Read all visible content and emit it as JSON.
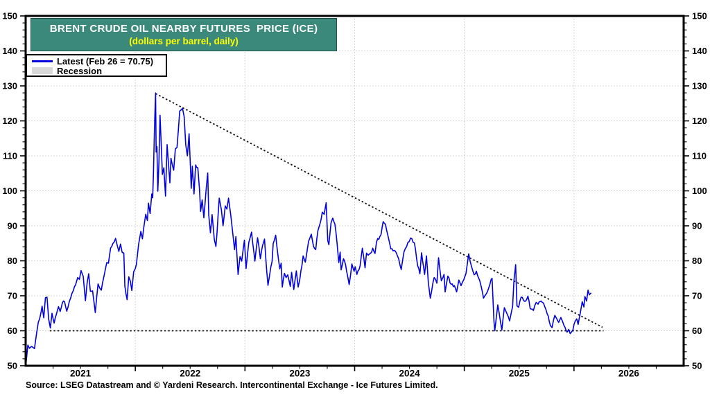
{
  "header": {
    "title": "BRENT CRUDE OIL NEARBY FUTURES  PRICE (ICE)",
    "subtitle": "(dollars per barrel, daily)",
    "title_bg": "#3a897b",
    "title_color": "#ffffff",
    "subtitle_color": "#ffff00"
  },
  "legend": {
    "items": [
      {
        "label": "Latest (Feb 26 = 70.75)",
        "type": "line",
        "color": "#0101dc"
      },
      {
        "label": "Recession",
        "type": "box",
        "color": "#d9d9d9"
      }
    ]
  },
  "source": "Source: LSEG Datastream and © Yardeni Research. Intercontinental Exchange - Ice Futures Limited.",
  "chart_data": {
    "type": "line",
    "title": "BRENT CRUDE OIL NEARBY FUTURES PRICE (ICE)",
    "subtitle": "(dollars per barrel, daily)",
    "xlabel": "",
    "ylabel": "dollars per barrel",
    "grid": true,
    "legend_position": "top-left",
    "latest": {
      "date": "Feb 26",
      "value": 70.75
    },
    "y_axis": {
      "min": 50,
      "max": 150,
      "major_step": 10,
      "minor_step": 2,
      "ticks": [
        50,
        60,
        70,
        80,
        90,
        100,
        110,
        120,
        130,
        140,
        150
      ],
      "sides": "both"
    },
    "x_axis": {
      "start_year": 2021,
      "span_years": 6,
      "minor_step_years": 0.25,
      "labels": [
        "2021",
        "2022",
        "2023",
        "2024",
        "2025",
        "2026"
      ]
    },
    "trendlines": [
      {
        "name": "descending-resistance",
        "style": "dotted",
        "color": "#111111",
        "points": [
          [
            1.185,
            127.8
          ],
          [
            5.26,
            61.0
          ]
        ]
      },
      {
        "name": "horizontal-support-60",
        "style": "dotted",
        "color": "#111111",
        "points": [
          [
            0.22,
            60.0
          ],
          [
            5.27,
            60.0
          ]
        ]
      }
    ],
    "series": [
      {
        "name": "Brent crude oil nearby futures price",
        "color": "#0101dc",
        "x_unit": "years since 2021-01-01",
        "points": [
          [
            0.005,
            51.2
          ],
          [
            0.02,
            55.9
          ],
          [
            0.035,
            55.0
          ],
          [
            0.055,
            55.5
          ],
          [
            0.08,
            54.9
          ],
          [
            0.1,
            59.3
          ],
          [
            0.115,
            62.4
          ],
          [
            0.14,
            65.2
          ],
          [
            0.15,
            67.0
          ],
          [
            0.165,
            63.7
          ],
          [
            0.18,
            69.4
          ],
          [
            0.195,
            69.6
          ],
          [
            0.21,
            63.3
          ],
          [
            0.225,
            60.8
          ],
          [
            0.24,
            65.0
          ],
          [
            0.26,
            62.2
          ],
          [
            0.28,
            64.7
          ],
          [
            0.3,
            66.9
          ],
          [
            0.315,
            65.5
          ],
          [
            0.335,
            68.0
          ],
          [
            0.355,
            68.3
          ],
          [
            0.375,
            65.6
          ],
          [
            0.41,
            69.3
          ],
          [
            0.435,
            71.5
          ],
          [
            0.455,
            73.1
          ],
          [
            0.475,
            75.2
          ],
          [
            0.49,
            74.7
          ],
          [
            0.505,
            77.2
          ],
          [
            0.525,
            75.6
          ],
          [
            0.545,
            68.6
          ],
          [
            0.56,
            73.6
          ],
          [
            0.575,
            76.3
          ],
          [
            0.59,
            71.3
          ],
          [
            0.61,
            71.4
          ],
          [
            0.635,
            65.2
          ],
          [
            0.66,
            73.4
          ],
          [
            0.675,
            72.2
          ],
          [
            0.69,
            71.6
          ],
          [
            0.715,
            75.7
          ],
          [
            0.74,
            79.5
          ],
          [
            0.755,
            79.3
          ],
          [
            0.775,
            83.7
          ],
          [
            0.795,
            84.9
          ],
          [
            0.82,
            86.4
          ],
          [
            0.835,
            84.4
          ],
          [
            0.85,
            82.7
          ],
          [
            0.865,
            84.8
          ],
          [
            0.88,
            82.4
          ],
          [
            0.895,
            82.2
          ],
          [
            0.905,
            72.7
          ],
          [
            0.915,
            70.6
          ],
          [
            0.925,
            68.9
          ],
          [
            0.94,
            75.4
          ],
          [
            0.955,
            74.2
          ],
          [
            0.968,
            71.5
          ],
          [
            0.985,
            76.9
          ],
          [
            1.0,
            77.8
          ],
          [
            1.01,
            79.0
          ],
          [
            1.03,
            84.7
          ],
          [
            1.05,
            88.4
          ],
          [
            1.065,
            86.3
          ],
          [
            1.085,
            91.2
          ],
          [
            1.095,
            93.3
          ],
          [
            1.11,
            91.5
          ],
          [
            1.12,
            96.5
          ],
          [
            1.135,
            93.5
          ],
          [
            1.15,
            99.1
          ],
          [
            1.158,
            98.0
          ],
          [
            1.165,
            105.0
          ],
          [
            1.175,
            118.1
          ],
          [
            1.185,
            127.98
          ],
          [
            1.19,
            111.1
          ],
          [
            1.197,
            112.7
          ],
          [
            1.205,
            99.9
          ],
          [
            1.215,
            107.9
          ],
          [
            1.225,
            121.6
          ],
          [
            1.237,
            112.5
          ],
          [
            1.247,
            104.7
          ],
          [
            1.26,
            106.6
          ],
          [
            1.275,
            98.5
          ],
          [
            1.29,
            113.2
          ],
          [
            1.315,
            102.3
          ],
          [
            1.325,
            109.3
          ],
          [
            1.35,
            105.9
          ],
          [
            1.365,
            112.0
          ],
          [
            1.38,
            112.4
          ],
          [
            1.405,
            122.8
          ],
          [
            1.43,
            123.6
          ],
          [
            1.445,
            121.2
          ],
          [
            1.46,
            113.1
          ],
          [
            1.475,
            110.0
          ],
          [
            1.49,
            116.3
          ],
          [
            1.51,
            100.7
          ],
          [
            1.52,
            107.0
          ],
          [
            1.535,
            99.1
          ],
          [
            1.55,
            107.4
          ],
          [
            1.57,
            106.6
          ],
          [
            1.585,
            100.5
          ],
          [
            1.595,
            94.1
          ],
          [
            1.61,
            97.4
          ],
          [
            1.625,
            92.3
          ],
          [
            1.645,
            100.2
          ],
          [
            1.66,
            105.1
          ],
          [
            1.67,
            93.0
          ],
          [
            1.685,
            88.0
          ],
          [
            1.7,
            93.2
          ],
          [
            1.72,
            86.2
          ],
          [
            1.735,
            84.1
          ],
          [
            1.745,
            88.0
          ],
          [
            1.765,
            97.9
          ],
          [
            1.785,
            94.6
          ],
          [
            1.8,
            90.0
          ],
          [
            1.82,
            95.7
          ],
          [
            1.835,
            94.8
          ],
          [
            1.85,
            97.9
          ],
          [
            1.87,
            93.1
          ],
          [
            1.89,
            87.5
          ],
          [
            1.905,
            83.2
          ],
          [
            1.917,
            86.9
          ],
          [
            1.937,
            76.1
          ],
          [
            1.955,
            81.2
          ],
          [
            1.97,
            79.9
          ],
          [
            1.995,
            85.9
          ],
          [
            2.01,
            77.8
          ],
          [
            2.035,
            85.3
          ],
          [
            2.06,
            88.2
          ],
          [
            2.09,
            79.9
          ],
          [
            2.115,
            86.6
          ],
          [
            2.14,
            80.6
          ],
          [
            2.16,
            84.3
          ],
          [
            2.178,
            86.2
          ],
          [
            2.197,
            77.5
          ],
          [
            2.21,
            73.0
          ],
          [
            2.235,
            78.1
          ],
          [
            2.247,
            79.8
          ],
          [
            2.257,
            84.9
          ],
          [
            2.28,
            87.3
          ],
          [
            2.3,
            81.7
          ],
          [
            2.318,
            77.7
          ],
          [
            2.33,
            79.3
          ],
          [
            2.34,
            72.5
          ],
          [
            2.36,
            76.4
          ],
          [
            2.375,
            75.2
          ],
          [
            2.39,
            76.0
          ],
          [
            2.413,
            72.7
          ],
          [
            2.425,
            76.7
          ],
          [
            2.445,
            71.8
          ],
          [
            2.468,
            77.1
          ],
          [
            2.485,
            72.5
          ],
          [
            2.5,
            74.7
          ],
          [
            2.53,
            81.4
          ],
          [
            2.55,
            79.6
          ],
          [
            2.58,
            85.6
          ],
          [
            2.605,
            87.6
          ],
          [
            2.625,
            84.1
          ],
          [
            2.645,
            83.2
          ],
          [
            2.665,
            88.6
          ],
          [
            2.685,
            90.7
          ],
          [
            2.705,
            93.9
          ],
          [
            2.722,
            93.3
          ],
          [
            2.74,
            96.6
          ],
          [
            2.755,
            85.8
          ],
          [
            2.765,
            84.6
          ],
          [
            2.785,
            90.9
          ],
          [
            2.8,
            92.2
          ],
          [
            2.82,
            90.5
          ],
          [
            2.84,
            84.9
          ],
          [
            2.855,
            79.5
          ],
          [
            2.868,
            82.5
          ],
          [
            2.877,
            77.4
          ],
          [
            2.898,
            80.6
          ],
          [
            2.917,
            78.9
          ],
          [
            2.935,
            75.8
          ],
          [
            2.95,
            73.2
          ],
          [
            2.975,
            79.1
          ],
          [
            2.995,
            77.0
          ],
          [
            3.005,
            78.3
          ],
          [
            3.02,
            76.1
          ],
          [
            3.05,
            78.6
          ],
          [
            3.07,
            83.6
          ],
          [
            3.095,
            78.0
          ],
          [
            3.108,
            82.2
          ],
          [
            3.123,
            81.6
          ],
          [
            3.155,
            82.5
          ],
          [
            3.165,
            83.6
          ],
          [
            3.185,
            82.1
          ],
          [
            3.2,
            85.4
          ],
          [
            3.24,
            87.5
          ],
          [
            3.26,
            91.2
          ],
          [
            3.28,
            90.5
          ],
          [
            3.305,
            87.0
          ],
          [
            3.33,
            83.4
          ],
          [
            3.37,
            82.8
          ],
          [
            3.39,
            81.4
          ],
          [
            3.425,
            77.5
          ],
          [
            3.45,
            82.6
          ],
          [
            3.485,
            85.2
          ],
          [
            3.51,
            86.5
          ],
          [
            3.545,
            85.1
          ],
          [
            3.575,
            78.6
          ],
          [
            3.595,
            76.3
          ],
          [
            3.61,
            82.3
          ],
          [
            3.638,
            76.1
          ],
          [
            3.655,
            81.4
          ],
          [
            3.672,
            73.7
          ],
          [
            3.69,
            69.3
          ],
          [
            3.725,
            75.2
          ],
          [
            3.75,
            73.6
          ],
          [
            3.765,
            80.9
          ],
          [
            3.79,
            74.3
          ],
          [
            3.815,
            76.1
          ],
          [
            3.825,
            71.1
          ],
          [
            3.85,
            75.6
          ],
          [
            3.88,
            73.3
          ],
          [
            3.91,
            72.9
          ],
          [
            3.93,
            71.1
          ],
          [
            3.95,
            74.5
          ],
          [
            3.97,
            72.9
          ],
          [
            3.995,
            74.6
          ],
          [
            4.015,
            76.3
          ],
          [
            4.04,
            82.0
          ],
          [
            4.065,
            78.5
          ],
          [
            4.09,
            76.0
          ],
          [
            4.11,
            77.0
          ],
          [
            4.14,
            74.4
          ],
          [
            4.155,
            72.5
          ],
          [
            4.175,
            69.3
          ],
          [
            4.21,
            71.1
          ],
          [
            4.245,
            74.7
          ],
          [
            4.253,
            75.0
          ],
          [
            4.27,
            62.8
          ],
          [
            4.278,
            60.0
          ],
          [
            4.305,
            67.4
          ],
          [
            4.327,
            63.1
          ],
          [
            4.342,
            60.2
          ],
          [
            4.365,
            66.6
          ],
          [
            4.39,
            64.8
          ],
          [
            4.413,
            62.8
          ],
          [
            4.44,
            66.9
          ],
          [
            4.452,
            74.2
          ],
          [
            4.468,
            78.9
          ],
          [
            4.48,
            67.1
          ],
          [
            4.495,
            66.7
          ],
          [
            4.518,
            69.6
          ],
          [
            4.54,
            68.7
          ],
          [
            4.56,
            68.5
          ],
          [
            4.58,
            69.9
          ],
          [
            4.6,
            66.4
          ],
          [
            4.63,
            65.8
          ],
          [
            4.655,
            68.1
          ],
          [
            4.672,
            67.6
          ],
          [
            4.7,
            68.5
          ],
          [
            4.722,
            67.9
          ],
          [
            4.745,
            66.0
          ],
          [
            4.765,
            64.2
          ],
          [
            4.785,
            61.5
          ],
          [
            4.8,
            60.9
          ],
          [
            4.825,
            64.4
          ],
          [
            4.84,
            63.6
          ],
          [
            4.86,
            62.4
          ],
          [
            4.88,
            63.8
          ],
          [
            4.898,
            62.5
          ],
          [
            4.918,
            61.0
          ],
          [
            4.937,
            59.6
          ],
          [
            4.952,
            60.4
          ],
          [
            4.965,
            59.2
          ],
          [
            4.99,
            60.3
          ],
          [
            5.012,
            62.8
          ],
          [
            5.025,
            63.4
          ],
          [
            5.038,
            61.8
          ],
          [
            5.057,
            64.9
          ],
          [
            5.075,
            68.3
          ],
          [
            5.09,
            66.8
          ],
          [
            5.1,
            69.8
          ],
          [
            5.115,
            68.5
          ],
          [
            5.128,
            71.6
          ],
          [
            5.14,
            70.3
          ],
          [
            5.154,
            70.75
          ]
        ]
      }
    ],
    "style_hints": {
      "grid_color": "#c9c9c9",
      "frame_color": "#000000",
      "daily_jitter_amp": 1.0
    }
  }
}
